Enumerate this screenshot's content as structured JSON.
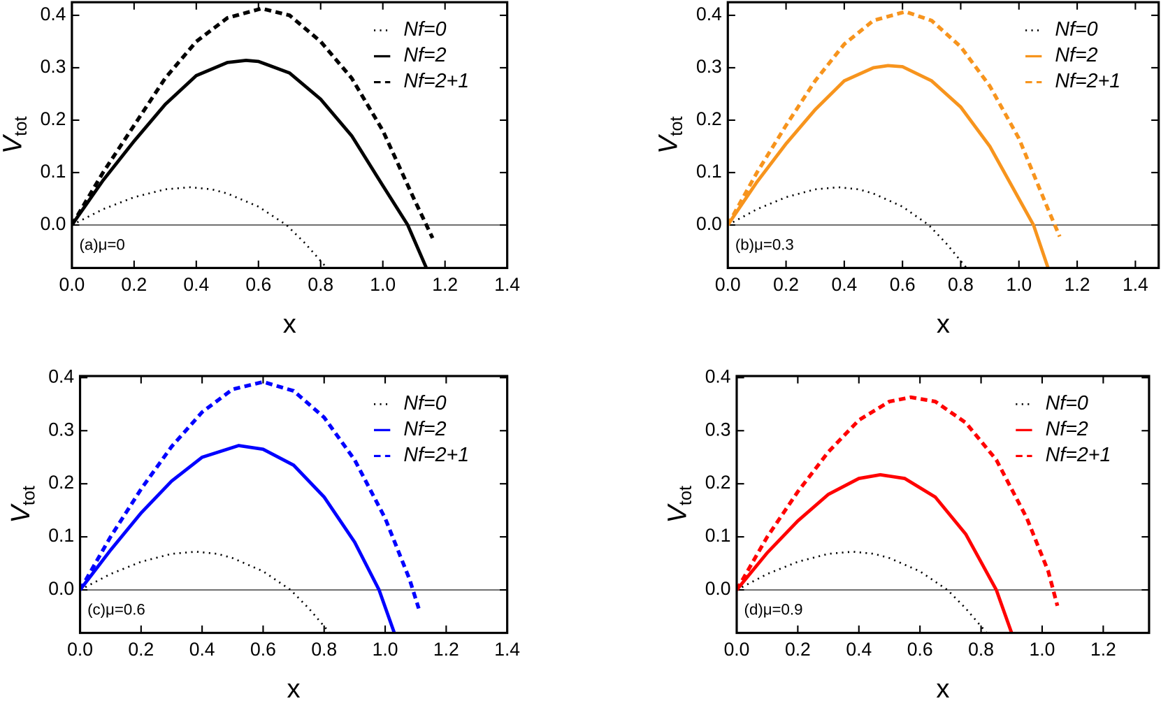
{
  "chart_data": [
    {
      "type": "line",
      "xlabel": "x",
      "ylabel": "V",
      "ylabel_subscript": "tot",
      "annotation": "(a)μ=0",
      "legend": "upper right",
      "xlim": [
        0,
        1.4
      ],
      "ylim": [
        -0.082,
        0.425
      ],
      "xticks": [
        {
          "value": 0,
          "label": "0.0"
        },
        0.2,
        0.4,
        0.6,
        0.8,
        {
          "value": 1,
          "label": "1.0"
        },
        1.2,
        1.4
      ],
      "yticks": [
        {
          "value": 0,
          "label": "0.0"
        },
        0.1,
        0.2,
        0.3,
        0.4
      ],
      "series": [
        {
          "name": "Nf=0",
          "color": "#000000",
          "style": "dotted",
          "x": [
            0,
            0.1,
            0.2,
            0.3,
            0.38,
            0.45,
            0.5,
            0.6,
            0.69,
            0.75,
            0.82
          ],
          "values": [
            0,
            0.03,
            0.053,
            0.068,
            0.072,
            0.068,
            0.06,
            0.035,
            0,
            -0.035,
            -0.082
          ]
        },
        {
          "name": "Nf=2",
          "color": "#000000",
          "style": "solid",
          "x": [
            0,
            0.1,
            0.2,
            0.3,
            0.4,
            0.5,
            0.56,
            0.6,
            0.7,
            0.8,
            0.9,
            1.0,
            1.08,
            1.14
          ],
          "values": [
            0,
            0.085,
            0.16,
            0.23,
            0.285,
            0.31,
            0.314,
            0.312,
            0.29,
            0.24,
            0.17,
            0.075,
            0,
            -0.082
          ]
        },
        {
          "name": "Nf=2+1",
          "color": "#000000",
          "style": "dashed",
          "x": [
            0,
            0.1,
            0.2,
            0.3,
            0.4,
            0.5,
            0.61,
            0.7,
            0.8,
            0.9,
            1.0,
            1.1,
            1.16
          ],
          "values": [
            0,
            0.1,
            0.19,
            0.28,
            0.35,
            0.395,
            0.413,
            0.4,
            0.35,
            0.28,
            0.18,
            0.05,
            -0.025
          ]
        }
      ]
    },
    {
      "type": "line",
      "xlabel": "x",
      "ylabel": "V",
      "ylabel_subscript": "tot",
      "annotation": "(b)μ=0.3",
      "legend": "upper right",
      "xlim": [
        0,
        1.48
      ],
      "ylim": [
        -0.082,
        0.425
      ],
      "xticks": [
        {
          "value": 0,
          "label": "0.0"
        },
        0.2,
        0.4,
        0.6,
        0.8,
        {
          "value": 1,
          "label": "1.0"
        },
        1.2,
        1.4
      ],
      "yticks": [
        {
          "value": 0,
          "label": "0.0"
        },
        0.1,
        0.2,
        0.3,
        0.4
      ],
      "series": [
        {
          "name": "Nf=0",
          "color": "#000000",
          "style": "dotted",
          "x": [
            0,
            0.1,
            0.2,
            0.3,
            0.38,
            0.45,
            0.5,
            0.6,
            0.69,
            0.75,
            0.82
          ],
          "values": [
            0,
            0.03,
            0.053,
            0.068,
            0.072,
            0.068,
            0.06,
            0.035,
            0,
            -0.035,
            -0.082
          ]
        },
        {
          "name": "Nf=2",
          "color": "#f7941d",
          "style": "solid",
          "x": [
            0,
            0.1,
            0.2,
            0.3,
            0.4,
            0.5,
            0.55,
            0.6,
            0.7,
            0.8,
            0.9,
            1.0,
            1.05,
            1.1
          ],
          "values": [
            0,
            0.082,
            0.155,
            0.22,
            0.275,
            0.3,
            0.304,
            0.302,
            0.275,
            0.225,
            0.15,
            0.05,
            0,
            -0.082
          ]
        },
        {
          "name": "Nf=2+1",
          "color": "#f7941d",
          "style": "dashed",
          "x": [
            0,
            0.1,
            0.2,
            0.3,
            0.4,
            0.5,
            0.61,
            0.7,
            0.8,
            0.9,
            1.0,
            1.1,
            1.14
          ],
          "values": [
            0,
            0.1,
            0.19,
            0.275,
            0.345,
            0.39,
            0.407,
            0.39,
            0.34,
            0.265,
            0.165,
            0.03,
            -0.022
          ]
        }
      ]
    },
    {
      "type": "line",
      "xlabel": "x",
      "ylabel": "V",
      "ylabel_subscript": "tot",
      "annotation": "(c)μ=0.6",
      "legend": "upper right",
      "xlim": [
        0,
        1.4
      ],
      "ylim": [
        -0.081,
        0.403
      ],
      "xticks": [
        {
          "value": 0,
          "label": "0.0"
        },
        0.2,
        0.4,
        0.6,
        0.8,
        {
          "value": 1,
          "label": "1.0"
        },
        1.2,
        1.4
      ],
      "yticks": [
        {
          "value": 0,
          "label": "0.0"
        },
        0.1,
        0.2,
        0.3,
        0.4
      ],
      "series": [
        {
          "name": "Nf=0",
          "color": "#000000",
          "style": "dotted",
          "x": [
            0,
            0.1,
            0.2,
            0.3,
            0.38,
            0.45,
            0.5,
            0.6,
            0.69,
            0.75,
            0.82
          ],
          "values": [
            0,
            0.03,
            0.053,
            0.068,
            0.072,
            0.068,
            0.06,
            0.035,
            0,
            -0.035,
            -0.082
          ]
        },
        {
          "name": "Nf=2",
          "color": "#0000ff",
          "style": "solid",
          "x": [
            0,
            0.1,
            0.2,
            0.3,
            0.4,
            0.52,
            0.6,
            0.7,
            0.8,
            0.9,
            0.98,
            1.03
          ],
          "values": [
            0,
            0.075,
            0.145,
            0.205,
            0.25,
            0.272,
            0.265,
            0.235,
            0.175,
            0.09,
            0,
            -0.081
          ]
        },
        {
          "name": "Nf=2+1",
          "color": "#0000ff",
          "style": "dashed",
          "x": [
            0,
            0.1,
            0.2,
            0.3,
            0.4,
            0.5,
            0.6,
            0.7,
            0.8,
            0.9,
            1.0,
            1.08,
            1.11
          ],
          "values": [
            0,
            0.1,
            0.19,
            0.27,
            0.335,
            0.378,
            0.392,
            0.375,
            0.325,
            0.245,
            0.135,
            0.02,
            -0.035
          ]
        }
      ]
    },
    {
      "type": "line",
      "xlabel": "x",
      "ylabel": "V",
      "ylabel_subscript": "tot",
      "annotation": "(d)μ=0.9",
      "legend": "upper right",
      "xlim": [
        0,
        1.35
      ],
      "ylim": [
        -0.081,
        0.403
      ],
      "xticks": [
        {
          "value": 0,
          "label": "0.0"
        },
        0.2,
        0.4,
        0.6,
        0.8,
        {
          "value": 1,
          "label": "1.0"
        },
        1.2
      ],
      "yticks": [
        {
          "value": 0,
          "label": "0.0"
        },
        0.1,
        0.2,
        0.3,
        0.4
      ],
      "series": [
        {
          "name": "Nf=0",
          "color": "#000000",
          "style": "dotted",
          "x": [
            0,
            0.1,
            0.2,
            0.3,
            0.38,
            0.45,
            0.5,
            0.6,
            0.69,
            0.75,
            0.82
          ],
          "values": [
            0,
            0.03,
            0.053,
            0.068,
            0.072,
            0.068,
            0.06,
            0.035,
            0,
            -0.035,
            -0.082
          ]
        },
        {
          "name": "Nf=2",
          "color": "#ff0000",
          "style": "solid",
          "x": [
            0,
            0.1,
            0.2,
            0.3,
            0.4,
            0.47,
            0.55,
            0.65,
            0.75,
            0.85,
            0.9
          ],
          "values": [
            0,
            0.07,
            0.13,
            0.18,
            0.21,
            0.217,
            0.21,
            0.175,
            0.105,
            0,
            -0.081
          ]
        },
        {
          "name": "Nf=2+1",
          "color": "#ff0000",
          "style": "dashed",
          "x": [
            0,
            0.1,
            0.2,
            0.3,
            0.4,
            0.5,
            0.57,
            0.65,
            0.75,
            0.85,
            0.95,
            1.02,
            1.05
          ],
          "values": [
            0,
            0.1,
            0.185,
            0.26,
            0.32,
            0.355,
            0.363,
            0.355,
            0.315,
            0.245,
            0.135,
            0.035,
            -0.03
          ]
        }
      ]
    }
  ]
}
